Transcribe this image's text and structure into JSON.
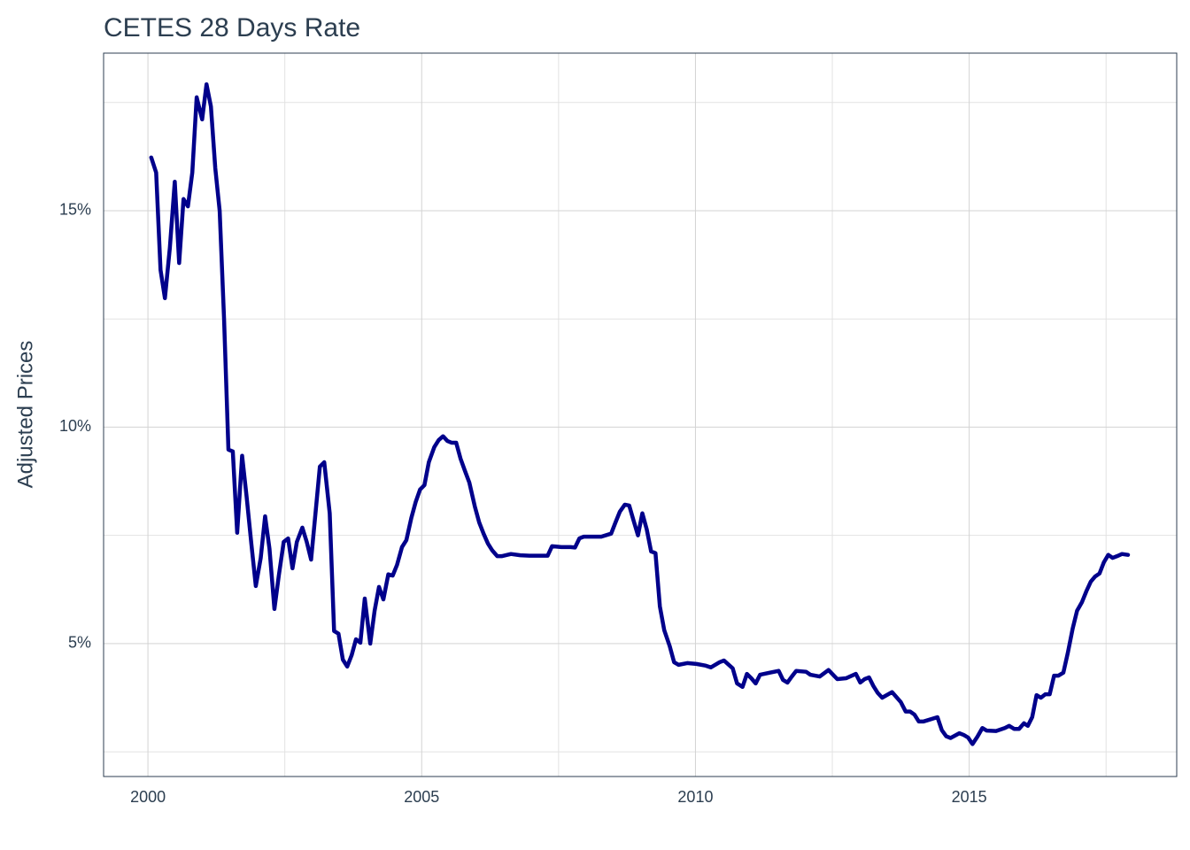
{
  "chart_data": {
    "type": "line",
    "title": "CETES 28 Days Rate",
    "y_label": "Adjusted Prices",
    "xlim": [
      1999.19,
      2018.79
    ],
    "ylim": [
      1.93,
      18.64
    ],
    "xticks": [
      2000,
      2005,
      2010,
      2015
    ],
    "yticks": [
      {
        "value": 5,
        "label": "5%"
      },
      {
        "value": 10,
        "label": "10%"
      },
      {
        "value": 15,
        "label": "15%"
      }
    ],
    "minor_xticks": [
      2002.5,
      2007.5,
      2012.5,
      2017.5
    ],
    "minor_yticks": [
      2.5,
      7.5,
      12.5,
      17.5
    ],
    "grid": true,
    "series": [
      {
        "color": "#00008b",
        "x": [
          2000.06,
          2000.15,
          2000.23,
          2000.31,
          2000.4,
          2000.49,
          2000.57,
          2000.65,
          2000.73,
          2000.81,
          2000.89,
          2000.99,
          2001.07,
          2001.15,
          2001.23,
          2001.31,
          2001.39,
          2001.47,
          2001.55,
          2001.63,
          2001.72,
          2001.8,
          2001.89,
          2001.97,
          2002.06,
          2002.14,
          2002.22,
          2002.31,
          2002.39,
          2002.48,
          2002.56,
          2002.64,
          2002.72,
          2002.82,
          2002.9,
          2002.98,
          2003.06,
          2003.14,
          2003.22,
          2003.32,
          2003.4,
          2003.48,
          2003.56,
          2003.64,
          2003.72,
          2003.8,
          2003.88,
          2003.96,
          2004.06,
          2004.14,
          2004.22,
          2004.3,
          2004.39,
          2004.47,
          2004.55,
          2004.64,
          2004.72,
          2004.81,
          2004.89,
          2004.97,
          2005.05,
          2005.13,
          2005.23,
          2005.31,
          2005.39,
          2005.47,
          2005.55,
          2005.63,
          2005.71,
          2005.79,
          2005.87,
          2005.97,
          2006.05,
          2006.13,
          2006.21,
          2006.29,
          2006.38,
          2006.46,
          2006.63,
          2006.8,
          2006.97,
          2007.14,
          2007.3,
          2007.38,
          2007.55,
          2007.72,
          2007.8,
          2007.88,
          2007.96,
          2008.12,
          2008.28,
          2008.46,
          2008.54,
          2008.62,
          2008.71,
          2008.79,
          2008.87,
          2008.95,
          2009.03,
          2009.11,
          2009.19,
          2009.27,
          2009.35,
          2009.43,
          2009.53,
          2009.61,
          2009.69,
          2009.85,
          2010.02,
          2010.19,
          2010.28,
          2010.44,
          2010.52,
          2010.68,
          2010.76,
          2010.86,
          2010.94,
          2011.02,
          2011.1,
          2011.18,
          2011.36,
          2011.52,
          2011.6,
          2011.68,
          2011.76,
          2011.84,
          2012.02,
          2012.1,
          2012.27,
          2012.43,
          2012.59,
          2012.75,
          2012.93,
          2013.01,
          2013.09,
          2013.17,
          2013.25,
          2013.33,
          2013.41,
          2013.59,
          2013.75,
          2013.84,
          2013.92,
          2014.0,
          2014.08,
          2014.16,
          2014.24,
          2014.42,
          2014.5,
          2014.58,
          2014.66,
          2014.82,
          2014.9,
          2014.98,
          2015.06,
          2015.15,
          2015.24,
          2015.32,
          2015.49,
          2015.65,
          2015.73,
          2015.82,
          2015.91,
          2016.0,
          2016.07,
          2016.15,
          2016.23,
          2016.31,
          2016.39,
          2016.47,
          2016.55,
          2016.63,
          2016.72,
          2016.8,
          2016.89,
          2016.97,
          2017.06,
          2017.14,
          2017.22,
          2017.3,
          2017.38,
          2017.46,
          2017.54,
          2017.62,
          2017.7,
          2017.79,
          2017.9
        ],
        "values": [
          16.23,
          15.88,
          13.63,
          12.98,
          14.14,
          15.67,
          13.79,
          15.27,
          15.1,
          15.88,
          17.62,
          17.11,
          17.92,
          17.41,
          15.98,
          15.0,
          12.51,
          9.48,
          9.44,
          7.56,
          9.34,
          8.42,
          7.29,
          6.33,
          6.98,
          7.94,
          7.19,
          5.8,
          6.57,
          7.35,
          7.43,
          6.74,
          7.35,
          7.68,
          7.35,
          6.94,
          8.01,
          9.09,
          9.19,
          8.01,
          5.29,
          5.23,
          4.63,
          4.47,
          4.73,
          5.1,
          5.02,
          6.04,
          5.0,
          5.76,
          6.31,
          6.02,
          6.6,
          6.57,
          6.82,
          7.23,
          7.39,
          7.9,
          8.27,
          8.56,
          8.66,
          9.19,
          9.54,
          9.7,
          9.79,
          9.68,
          9.64,
          9.64,
          9.27,
          8.99,
          8.72,
          8.17,
          7.8,
          7.54,
          7.31,
          7.15,
          7.02,
          7.02,
          7.07,
          7.04,
          7.03,
          7.03,
          7.03,
          7.25,
          7.23,
          7.23,
          7.22,
          7.43,
          7.47,
          7.47,
          7.47,
          7.54,
          7.8,
          8.05,
          8.21,
          8.19,
          7.84,
          7.5,
          8.01,
          7.64,
          7.13,
          7.09,
          5.86,
          5.31,
          4.94,
          4.57,
          4.51,
          4.55,
          4.53,
          4.49,
          4.45,
          4.57,
          4.61,
          4.43,
          4.08,
          4.0,
          4.3,
          4.2,
          4.08,
          4.28,
          4.33,
          4.37,
          4.16,
          4.1,
          4.24,
          4.37,
          4.35,
          4.28,
          4.24,
          4.39,
          4.18,
          4.2,
          4.3,
          4.1,
          4.18,
          4.22,
          4.02,
          3.86,
          3.75,
          3.88,
          3.65,
          3.43,
          3.43,
          3.36,
          3.2,
          3.2,
          3.23,
          3.3,
          3.0,
          2.86,
          2.82,
          2.93,
          2.89,
          2.83,
          2.68,
          2.85,
          3.05,
          2.99,
          2.98,
          3.05,
          3.1,
          3.03,
          3.03,
          3.16,
          3.1,
          3.3,
          3.81,
          3.75,
          3.83,
          3.83,
          4.26,
          4.26,
          4.33,
          4.78,
          5.35,
          5.76,
          5.96,
          6.21,
          6.43,
          6.55,
          6.62,
          6.88,
          7.05,
          6.98,
          7.02,
          7.07,
          7.05
        ]
      }
    ]
  }
}
